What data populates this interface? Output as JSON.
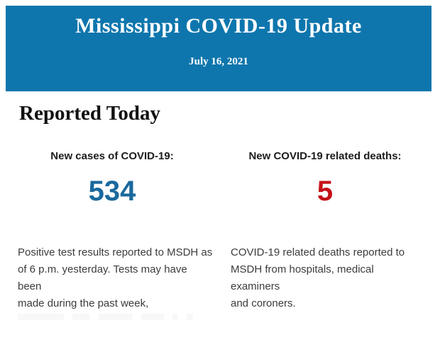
{
  "banner": {
    "title": "Mississippi COVID-19 Update",
    "date": "July 16, 2021",
    "background_color": "#0e76ad",
    "text_color": "#ffffff"
  },
  "section": {
    "heading": "Reported Today"
  },
  "stats": [
    {
      "label": "New cases of COVID-19:",
      "value": "534",
      "value_color": "#1a699e",
      "description_lines": [
        "Positive test results reported to MSDH as",
        "of 6 p.m. yesterday. Tests may have been",
        "made during the past week,"
      ]
    },
    {
      "label": "New COVID-19 related deaths:",
      "value": "5",
      "value_color": "#c41118",
      "description_lines": [
        "COVID-19 related deaths reported to",
        "MSDH from hospitals, medical examiners",
        "and coroners."
      ]
    }
  ]
}
